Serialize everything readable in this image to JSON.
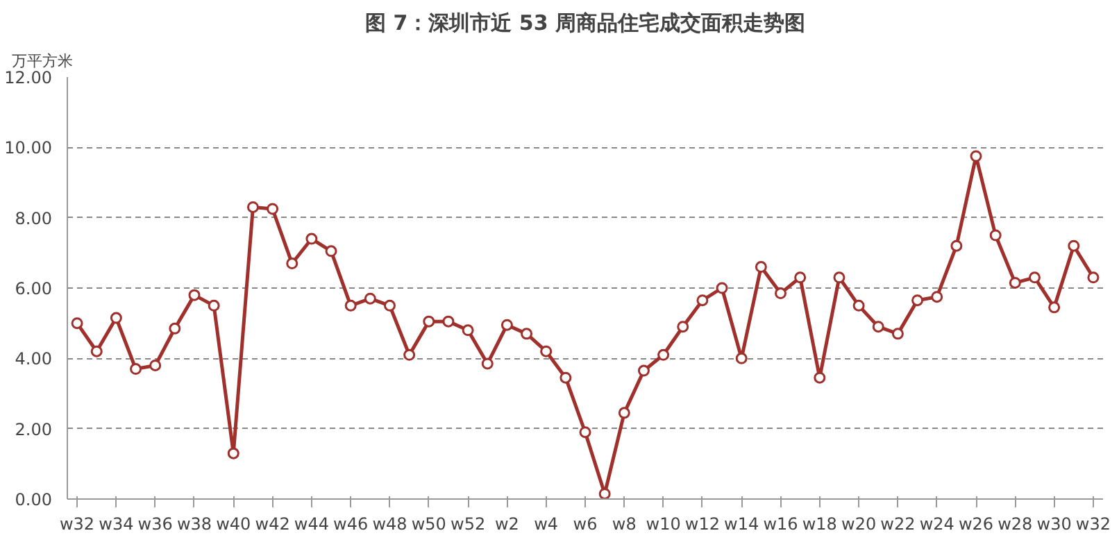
{
  "chart_data": {
    "type": "line",
    "title": "图 7：深圳市近 53 周商品住宅成交面积走势图",
    "ylabel": "万平方米",
    "categories": [
      "w32",
      null,
      "w34",
      null,
      "w36",
      null,
      "w38",
      null,
      "w40",
      null,
      "w42",
      null,
      "w44",
      null,
      "w46",
      null,
      "w48",
      null,
      "w50",
      null,
      "w52",
      null,
      "w2",
      null,
      "w4",
      null,
      "w6",
      null,
      "w8",
      null,
      "w10",
      null,
      "w12",
      null,
      "w14",
      null,
      "w16",
      null,
      "w18",
      null,
      "w20",
      null,
      "w22",
      null,
      "w24",
      null,
      "w26",
      null,
      "w28",
      null,
      "w30",
      null,
      "w32"
    ],
    "series": [
      {
        "color": "#a0302c",
        "values": [
          5.0,
          4.2,
          5.15,
          3.7,
          3.8,
          4.85,
          5.8,
          5.5,
          1.3,
          8.3,
          8.25,
          6.7,
          7.4,
          7.05,
          5.5,
          5.7,
          5.5,
          4.1,
          5.05,
          5.05,
          4.8,
          3.85,
          4.95,
          4.7,
          4.2,
          3.45,
          1.9,
          0.15,
          2.45,
          3.65,
          4.1,
          4.9,
          5.65,
          6.0,
          4.0,
          6.6,
          5.85,
          6.3,
          3.45,
          6.3,
          5.5,
          4.9,
          4.7,
          5.65,
          5.75,
          7.2,
          9.75,
          7.5,
          6.15,
          6.3,
          5.45,
          7.2,
          6.3
        ]
      }
    ],
    "ylim": [
      0,
      12
    ],
    "yticks": [
      {
        "value": 0,
        "label": "0.00"
      },
      {
        "value": 2,
        "label": "2.00"
      },
      {
        "value": 4,
        "label": "4.00"
      },
      {
        "value": 6,
        "label": "6.00"
      },
      {
        "value": 8,
        "label": "8.00"
      },
      {
        "value": 10,
        "label": "10.00"
      },
      {
        "value": 12,
        "label": "12.00"
      }
    ],
    "grid": "y",
    "marker": "circle",
    "line_style": "solid"
  }
}
